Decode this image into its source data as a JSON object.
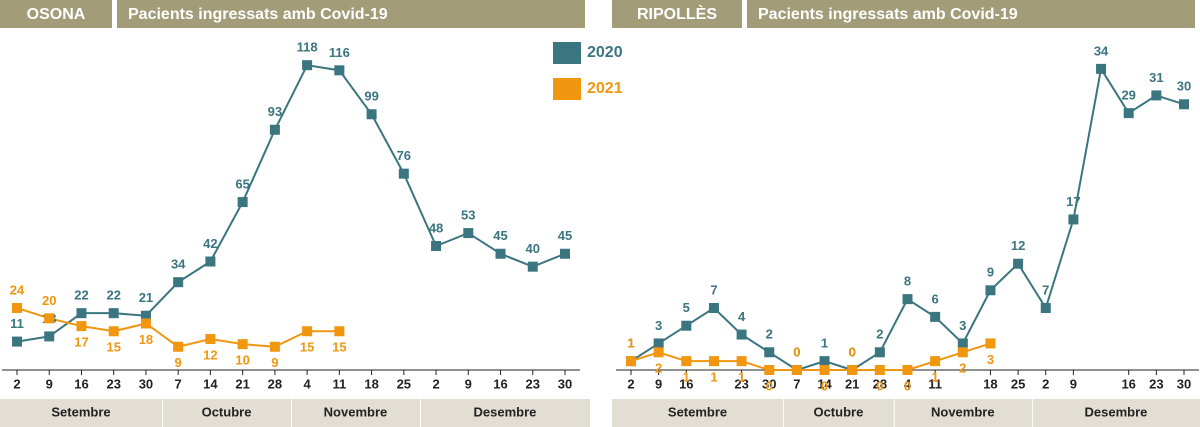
{
  "chart_data": [
    {
      "type": "line",
      "region": "OSONA",
      "title": "Pacients ingressats amb Covid-19",
      "categories": [
        "2",
        "9",
        "16",
        "23",
        "30",
        "7",
        "14",
        "21",
        "28",
        "4",
        "11",
        "18",
        "25",
        "2",
        "9",
        "16",
        "23",
        "30"
      ],
      "months": [
        "Setembre",
        "Octubre",
        "Novembre",
        "Desembre"
      ],
      "series": [
        {
          "name": "2020",
          "color": "#3a7580",
          "values": [
            11,
            13,
            22,
            22,
            21,
            34,
            42,
            65,
            93,
            118,
            116,
            99,
            76,
            48,
            53,
            45,
            40,
            45
          ]
        },
        {
          "name": "2021",
          "color": "#f0960f",
          "values": [
            24,
            20,
            17,
            15,
            18,
            9,
            12,
            10,
            9,
            15,
            15,
            null,
            null,
            null,
            null,
            null,
            null,
            null
          ]
        }
      ],
      "ylim": [
        0,
        120
      ],
      "legend": "top-right"
    },
    {
      "type": "line",
      "region": "RIPOLLÈS",
      "title": "Pacients ingressats amb Covid-19",
      "categories": [
        "2",
        "9",
        "16",
        null,
        "23",
        "30",
        "7",
        "14",
        "21",
        "28",
        "4",
        "11",
        null,
        "18",
        "25",
        "2",
        "9",
        null,
        "16",
        "23",
        "30"
      ],
      "months": [
        "Setembre",
        "Octubre",
        "Novembre",
        "Desembre"
      ],
      "series": [
        {
          "color": "#3a7580",
          "values": [
            1,
            3,
            5,
            7,
            4,
            2,
            0,
            1,
            0,
            2,
            8,
            6,
            3,
            9,
            12,
            7,
            17,
            34,
            29,
            31,
            30
          ]
        },
        {
          "color": "#f0960f",
          "values": [
            1,
            2,
            1,
            1,
            1,
            0,
            0,
            0,
            0,
            0,
            0,
            1,
            2,
            3,
            null,
            null,
            null,
            null,
            null,
            null,
            null
          ]
        }
      ],
      "ylim": [
        0,
        35
      ]
    }
  ]
}
